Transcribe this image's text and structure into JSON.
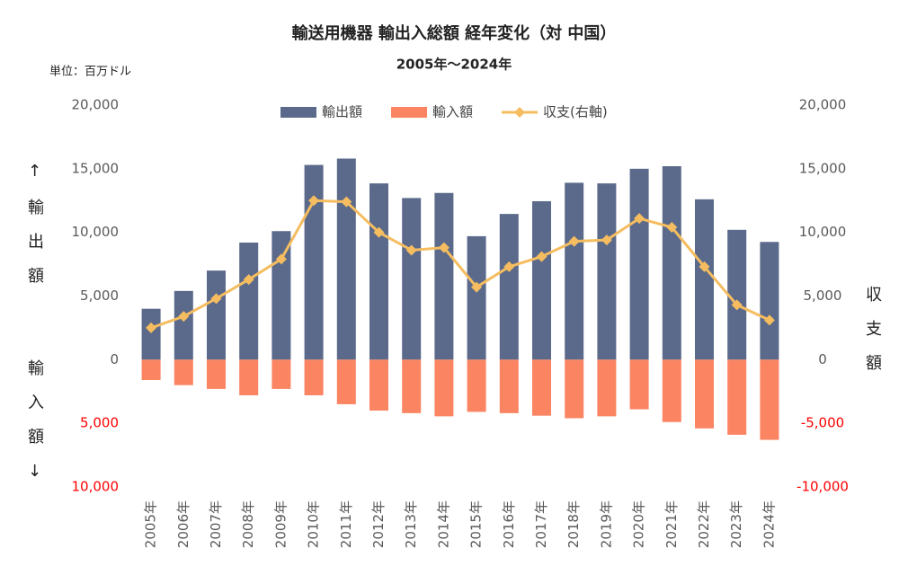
{
  "chart_data": {
    "type": "bar",
    "title": "輸送用機器 輸出入総額 経年変化（対 中国）",
    "subtitle": "2005年～2024年",
    "unit_label": "単位：百万ドル",
    "y_label_top": "↑輸出額",
    "y_label_bottom": "輸入額↓",
    "y2_label": "収支額",
    "categories": [
      "2005年",
      "2006年",
      "2007年",
      "2008年",
      "2009年",
      "2010年",
      "2011年",
      "2012年",
      "2013年",
      "2014年",
      "2015年",
      "2016年",
      "2017年",
      "2018年",
      "2019年",
      "2020年",
      "2021年",
      "2022年",
      "2023年",
      "2024年"
    ],
    "series": [
      {
        "name": "輸出額",
        "type": "bar",
        "color": "#5b6a8a",
        "values": [
          4000,
          5400,
          7000,
          9200,
          10100,
          15300,
          15800,
          13850,
          12700,
          13100,
          9700,
          11450,
          12450,
          13900,
          13850,
          15000,
          15200,
          12600,
          10200,
          9250
        ]
      },
      {
        "name": "輸入額",
        "type": "bar",
        "color": "#fb8462",
        "values": [
          -1600,
          -2000,
          -2300,
          -2800,
          -2300,
          -2800,
          -3500,
          -4000,
          -4200,
          -4450,
          -4100,
          -4200,
          -4400,
          -4600,
          -4450,
          -3900,
          -4900,
          -5400,
          -5900,
          -6300
        ]
      },
      {
        "name": "収支(右軸)",
        "type": "line",
        "axis": "y2",
        "color": "#f5bd60",
        "values": [
          2500,
          3400,
          4800,
          6300,
          7900,
          12500,
          12400,
          10000,
          8600,
          8800,
          5700,
          7300,
          8100,
          9300,
          9400,
          11100,
          10400,
          7300,
          4300,
          3100
        ]
      }
    ],
    "ylim": [
      -10000,
      20000
    ],
    "yticks": [
      {
        "value": -10000,
        "label": "10,000"
      },
      {
        "value": -5000,
        "label": "5,000"
      },
      0,
      {
        "value": 5000,
        "label": "5,000"
      },
      {
        "value": 10000,
        "label": "10,000"
      },
      {
        "value": 15000,
        "label": "15,000"
      },
      {
        "value": 20000,
        "label": "20,000"
      }
    ],
    "y2lim": [
      -10000,
      20000
    ],
    "y2ticks": [
      {
        "value": -10000,
        "label": "-10,000"
      },
      {
        "value": -5000,
        "label": "-5,000"
      },
      0,
      {
        "value": 5000,
        "label": "5,000"
      },
      {
        "value": 10000,
        "label": "10,000"
      },
      {
        "value": 15000,
        "label": "15,000"
      },
      {
        "value": 20000,
        "label": "20,000"
      }
    ],
    "negative_tick_color": "#ff0000",
    "legend": "top",
    "grid": false
  }
}
